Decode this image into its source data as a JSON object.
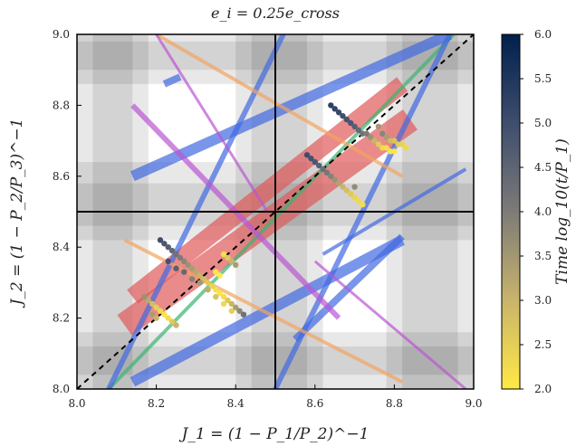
{
  "chart_data": {
    "type": "scatter",
    "title": "e_i = 0.25e_cross",
    "xlabel": "J_1 = (1 − P_1/P_2)^−1",
    "ylabel": "J_2 = (1 − P_2/P_3)^−1",
    "colorbar_label": "Time log_10(t/P_1)",
    "xlim": [
      8.0,
      9.0
    ],
    "ylim": [
      8.0,
      9.0
    ],
    "clim": [
      2.0,
      6.0
    ],
    "x_ticks": [
      "8.0",
      "8.2",
      "8.4",
      "8.6",
      "8.8",
      "9.0"
    ],
    "y_ticks": [
      "8.0",
      "8.2",
      "8.4",
      "8.6",
      "8.8",
      "9.0"
    ],
    "c_ticks": [
      "2.0",
      "2.5",
      "3.0",
      "3.5",
      "4.0",
      "4.5",
      "5.0",
      "5.5",
      "6.0"
    ],
    "grid": false,
    "vline_x": 8.5,
    "hline_y": 8.5,
    "diagonal": {
      "from": [
        8.0,
        8.0
      ],
      "to": [
        9.0,
        9.0
      ],
      "style": "dashed"
    },
    "gray_bands": {
      "vertical": [
        [
          8.0,
          8.18
        ],
        [
          8.04,
          8.14
        ],
        [
          8.4,
          8.62
        ],
        [
          8.44,
          8.58
        ],
        [
          8.78,
          9.0
        ],
        [
          8.82,
          8.96
        ]
      ],
      "horizontal": [
        [
          8.0,
          8.16
        ],
        [
          8.04,
          8.12
        ],
        [
          8.42,
          8.64
        ],
        [
          8.46,
          8.58
        ],
        [
          8.86,
          9.0
        ],
        [
          8.9,
          8.98
        ]
      ]
    },
    "resonance_strips": [
      {
        "color": "#e05a5a",
        "from": [
          8.12,
          8.18
        ],
        "to": [
          8.84,
          8.76
        ],
        "width": 0.07
      },
      {
        "color": "#e05a5a",
        "from": [
          8.14,
          8.26
        ],
        "to": [
          8.82,
          8.86
        ],
        "width": 0.05
      },
      {
        "color": "#3cb371",
        "from": [
          8.08,
          8.0
        ],
        "to": [
          8.95,
          9.0
        ],
        "width": 0.01
      },
      {
        "color": "#4169e1",
        "from": [
          8.14,
          8.6
        ],
        "to": [
          8.94,
          9.0
        ],
        "width": 0.03
      },
      {
        "color": "#4169e1",
        "from": [
          8.08,
          8.0
        ],
        "to": [
          8.52,
          9.0
        ],
        "width": 0.015
      },
      {
        "color": "#4169e1",
        "from": [
          8.5,
          8.0
        ],
        "to": [
          8.94,
          9.0
        ],
        "width": 0.015
      },
      {
        "color": "#4169e1",
        "from": [
          8.22,
          8.86
        ],
        "to": [
          8.26,
          8.88
        ],
        "width": 0.02
      },
      {
        "color": "#4169e1",
        "from": [
          8.14,
          8.02
        ],
        "to": [
          8.82,
          8.42
        ],
        "width": 0.03
      },
      {
        "color": "#4169e1",
        "from": [
          8.55,
          8.14
        ],
        "to": [
          8.82,
          8.43
        ],
        "width": 0.02
      },
      {
        "color": "#4169e1",
        "from": [
          8.62,
          8.38
        ],
        "to": [
          8.98,
          8.62
        ],
        "width": 0.01
      },
      {
        "color": "#f4a460",
        "from": [
          8.2,
          9.0
        ],
        "to": [
          8.82,
          8.6
        ],
        "width": 0.01
      },
      {
        "color": "#f4a460",
        "from": [
          8.12,
          8.42
        ],
        "to": [
          8.82,
          8.02
        ],
        "width": 0.01
      },
      {
        "color": "#ba55d3",
        "from": [
          8.14,
          8.8
        ],
        "to": [
          8.66,
          8.2
        ],
        "width": 0.015
      },
      {
        "color": "#ba55d3",
        "from": [
          8.2,
          9.0
        ],
        "to": [
          8.48,
          8.5
        ],
        "width": 0.005
      },
      {
        "color": "#ba55d3",
        "from": [
          8.6,
          8.36
        ],
        "to": [
          8.98,
          8.0
        ],
        "width": 0.005
      }
    ],
    "series": [
      {
        "cluster": "upper-right-top",
        "points": [
          [
            8.64,
            8.8,
            5.3
          ],
          [
            8.65,
            8.79,
            5.2
          ],
          [
            8.66,
            8.78,
            5.1
          ],
          [
            8.67,
            8.77,
            5.0
          ],
          [
            8.68,
            8.76,
            4.9
          ],
          [
            8.69,
            8.75,
            4.8
          ],
          [
            8.7,
            8.74,
            4.6
          ],
          [
            8.71,
            8.73,
            4.4
          ],
          [
            8.72,
            8.72,
            4.2
          ],
          [
            8.73,
            8.72,
            4.0
          ],
          [
            8.74,
            8.71,
            3.6
          ],
          [
            8.75,
            8.7,
            3.0
          ],
          [
            8.76,
            8.69,
            2.6
          ],
          [
            8.77,
            8.68,
            2.3
          ],
          [
            8.78,
            8.68,
            2.2
          ],
          [
            8.79,
            8.67,
            2.1
          ],
          [
            8.8,
            8.67,
            2.1
          ],
          [
            8.76,
            8.74,
            3.5
          ],
          [
            8.77,
            8.72,
            3.8
          ],
          [
            8.78,
            8.71,
            3.4
          ],
          [
            8.79,
            8.7,
            2.9
          ],
          [
            8.8,
            8.7,
            2.7
          ],
          [
            8.81,
            8.69,
            2.5
          ],
          [
            8.82,
            8.69,
            2.4
          ],
          [
            8.83,
            8.68,
            2.3
          ]
        ]
      },
      {
        "cluster": "upper-right-bottom",
        "points": [
          [
            8.6,
            8.64,
            4.8
          ],
          [
            8.61,
            8.63,
            4.6
          ],
          [
            8.62,
            8.62,
            4.3
          ],
          [
            8.63,
            8.61,
            4.1
          ],
          [
            8.64,
            8.6,
            3.9
          ],
          [
            8.65,
            8.59,
            3.6
          ],
          [
            8.66,
            8.58,
            3.3
          ],
          [
            8.67,
            8.57,
            3.0
          ],
          [
            8.68,
            8.56,
            2.8
          ],
          [
            8.69,
            8.55,
            2.6
          ],
          [
            8.7,
            8.54,
            2.4
          ],
          [
            8.71,
            8.53,
            2.3
          ],
          [
            8.72,
            8.52,
            2.2
          ],
          [
            8.58,
            8.66,
            5.0
          ],
          [
            8.59,
            8.65,
            4.9
          ],
          [
            8.7,
            8.57,
            3.7
          ]
        ]
      },
      {
        "cluster": "lower-left-dense",
        "points": [
          [
            8.21,
            8.42,
            5.0
          ],
          [
            8.22,
            8.41,
            4.8
          ],
          [
            8.23,
            8.4,
            4.6
          ],
          [
            8.24,
            8.39,
            4.4
          ],
          [
            8.25,
            8.38,
            4.2
          ],
          [
            8.26,
            8.37,
            4.0
          ],
          [
            8.27,
            8.36,
            3.8
          ],
          [
            8.28,
            8.35,
            3.6
          ],
          [
            8.29,
            8.34,
            3.4
          ],
          [
            8.3,
            8.33,
            3.2
          ],
          [
            8.31,
            8.32,
            3.0
          ],
          [
            8.32,
            8.31,
            2.8
          ],
          [
            8.33,
            8.3,
            2.6
          ],
          [
            8.34,
            8.29,
            2.4
          ],
          [
            8.35,
            8.28,
            2.2
          ],
          [
            8.36,
            8.27,
            2.1
          ],
          [
            8.37,
            8.26,
            2.2
          ],
          [
            8.38,
            8.25,
            2.6
          ],
          [
            8.39,
            8.24,
            3.0
          ],
          [
            8.4,
            8.23,
            3.4
          ],
          [
            8.41,
            8.22,
            3.8
          ],
          [
            8.42,
            8.21,
            4.2
          ],
          [
            8.25,
            8.34,
            4.6
          ],
          [
            8.27,
            8.33,
            4.4
          ],
          [
            8.29,
            8.31,
            3.9
          ],
          [
            8.31,
            8.3,
            3.5
          ],
          [
            8.33,
            8.28,
            3.1
          ],
          [
            8.35,
            8.26,
            2.7
          ],
          [
            8.37,
            8.24,
            2.3
          ],
          [
            8.39,
            8.22,
            2.5
          ],
          [
            8.23,
            8.36,
            4.9
          ],
          [
            8.35,
            8.33,
            2.1
          ],
          [
            8.36,
            8.32,
            2.0
          ]
        ]
      },
      {
        "cluster": "lower-left-tail",
        "points": [
          [
            8.17,
            8.26,
            3.6
          ],
          [
            8.18,
            8.25,
            3.2
          ],
          [
            8.19,
            8.24,
            2.8
          ],
          [
            8.2,
            8.23,
            2.5
          ],
          [
            8.21,
            8.22,
            2.3
          ],
          [
            8.22,
            8.21,
            2.1
          ],
          [
            8.23,
            8.2,
            2.2
          ],
          [
            8.24,
            8.19,
            2.6
          ],
          [
            8.25,
            8.18,
            3.0
          ],
          [
            8.19,
            8.21,
            3.4
          ],
          [
            8.2,
            8.2,
            3.0
          ]
        ]
      },
      {
        "cluster": "center-small",
        "points": [
          [
            8.37,
            8.38,
            2.2
          ],
          [
            8.38,
            8.37,
            2.6
          ],
          [
            8.39,
            8.36,
            3.0
          ],
          [
            8.4,
            8.35,
            3.4
          ]
        ]
      }
    ]
  }
}
